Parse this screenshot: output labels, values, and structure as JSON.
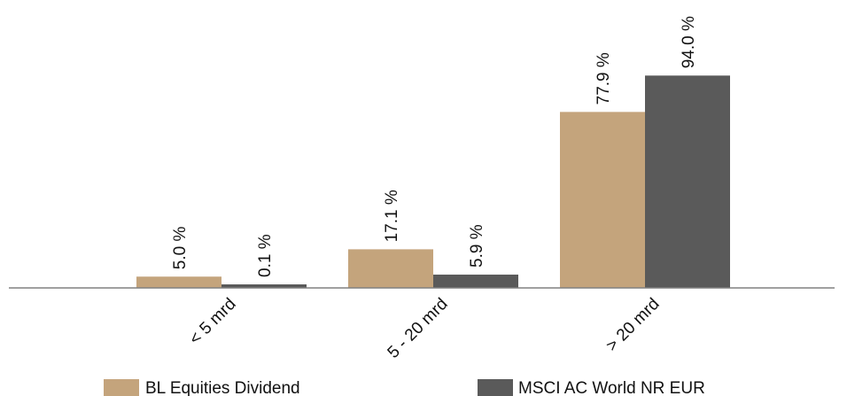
{
  "chart_data": {
    "type": "bar",
    "categories": [
      "< 5 mrd",
      "5 - 20 mrd",
      "> 20 mrd"
    ],
    "series": [
      {
        "name": "BL Equities Dividend",
        "values": [
          5.0,
          17.1,
          77.9
        ],
        "labels": [
          "5.0 %",
          "17.1 %",
          "77.9 %"
        ],
        "color": "#c4a47c"
      },
      {
        "name": "MSCI AC World NR EUR",
        "values": [
          0.1,
          5.9,
          94.0
        ],
        "labels": [
          "0.1 %",
          "5.9 %",
          "94.0 %"
        ],
        "color": "#5a5a5a"
      }
    ],
    "ylim": [
      0,
      100
    ],
    "grid": false,
    "legend_position": "bottom",
    "axis_color": "#808080"
  }
}
